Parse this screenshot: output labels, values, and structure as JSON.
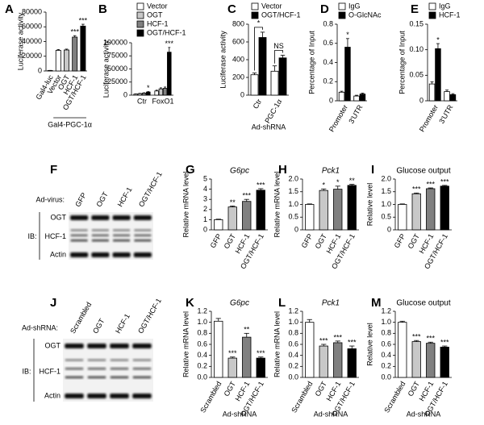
{
  "chart_data": [
    {
      "type": "bar",
      "letter": "A",
      "ylabel": "Luciferase activity",
      "categories": [
        "Gal4-luc",
        "Vector",
        "OGT",
        "HCF-1",
        "OGT/HCF-1"
      ],
      "values": [
        600,
        28000,
        28500,
        46000,
        61000
      ],
      "errors": [
        200,
        1200,
        1200,
        2000,
        2500
      ],
      "colors": [
        "#ffffff",
        "#ffffff",
        "#c8c8c8",
        "#808080",
        "#000000"
      ],
      "significance": [
        null,
        null,
        null,
        "***",
        "***"
      ],
      "group_label": "Gal4-PGC-1α",
      "ylim": [
        0,
        80000
      ],
      "yticks": [
        0,
        20000,
        40000,
        60000,
        80000
      ]
    },
    {
      "type": "bar",
      "letter": "B",
      "ylabel": "Luciferase activity",
      "categories": [
        "Ctr",
        "FoxO1"
      ],
      "series": [
        {
          "name": "Vector",
          "color": "#ffffff",
          "values": [
            2000,
            8000
          ],
          "errors": [
            400,
            1500
          ],
          "significance": [
            null,
            null
          ]
        },
        {
          "name": "OGT",
          "color": "#c8c8c8",
          "values": [
            3000,
            12000
          ],
          "errors": [
            500,
            2000
          ],
          "significance": [
            null,
            null
          ]
        },
        {
          "name": "HCF-1",
          "color": "#808080",
          "values": [
            4000,
            13000
          ],
          "errors": [
            600,
            2500
          ],
          "significance": [
            null,
            null
          ]
        },
        {
          "name": "OGT/HCF-1",
          "color": "#000000",
          "values": [
            6000,
            82000
          ],
          "errors": [
            800,
            9000
          ],
          "significance": [
            "*",
            "***"
          ]
        }
      ],
      "ylim": [
        0,
        100000
      ],
      "yticks": [
        0,
        25000,
        50000,
        75000,
        100000
      ]
    },
    {
      "type": "bar",
      "letter": "C",
      "ylabel": "Luciferase activity",
      "xlabel": "Ad-shRNA",
      "categories": [
        "Ctr",
        "PGC-1α"
      ],
      "series": [
        {
          "name": "Vector",
          "color": "#ffffff",
          "values": [
            230,
            270
          ],
          "errors": [
            20,
            60
          ]
        },
        {
          "name": "OGT/HCF-1",
          "color": "#000000",
          "values": [
            650,
            420
          ],
          "errors": [
            60,
            30
          ]
        }
      ],
      "significance": [
        "*",
        "NS"
      ],
      "ylim": [
        0,
        800
      ],
      "yticks": [
        0,
        200,
        400,
        600,
        800
      ]
    },
    {
      "type": "bar",
      "letter": "D",
      "ylabel": "Percentage of Input",
      "categories": [
        "Promoter",
        "3'UTR"
      ],
      "series": [
        {
          "name": "IgG",
          "color": "#ffffff",
          "values": [
            0.09,
            0.05
          ],
          "errors": [
            0.01,
            0.008
          ],
          "significance": [
            null,
            null
          ]
        },
        {
          "name": "O-GlcNAc",
          "color": "#000000",
          "values": [
            0.56,
            0.07
          ],
          "errors": [
            0.09,
            0.01
          ],
          "significance": [
            "*",
            null
          ]
        }
      ],
      "ylim": [
        0,
        0.8
      ],
      "yticks": [
        0,
        0.2,
        0.4,
        0.6,
        0.8
      ]
    },
    {
      "type": "bar",
      "letter": "E",
      "ylabel": "Percentage of Input",
      "categories": [
        "Promoter",
        "3'UTR"
      ],
      "series": [
        {
          "name": "IgG",
          "color": "#ffffff",
          "values": [
            0.033,
            0.018
          ],
          "errors": [
            0.004,
            0.003
          ],
          "significance": [
            null,
            null
          ]
        },
        {
          "name": "HCF-1",
          "color": "#000000",
          "values": [
            0.102,
            0.012
          ],
          "errors": [
            0.01,
            0.002
          ],
          "significance": [
            "*",
            null
          ]
        }
      ],
      "ylim": [
        0,
        0.15
      ],
      "yticks": [
        0,
        0.05,
        {
          "value": 0.1,
          "label": "0.10"
        },
        0.15
      ]
    },
    {
      "type": "bar",
      "letter": "G",
      "title": "G6pc",
      "title_italic": true,
      "ylabel": "Relative mRNA level",
      "categories": [
        "GFP",
        "OGT",
        "HCF-1",
        "OGT/HCF-1"
      ],
      "values": [
        1,
        2.25,
        2.8,
        3.9
      ],
      "errors": [
        0.05,
        0.1,
        0.2,
        0.15
      ],
      "colors": [
        "#ffffff",
        "#c8c8c8",
        "#808080",
        "#000000"
      ],
      "significance": [
        null,
        "**",
        "***",
        "***"
      ],
      "ylim": [
        0,
        5
      ],
      "yticks": [
        0,
        1,
        2,
        3,
        4,
        5
      ]
    },
    {
      "type": "bar",
      "letter": "H",
      "title": "Pck1",
      "title_italic": true,
      "ylabel": "Relative mRNA level",
      "categories": [
        "GFP",
        "OGT",
        "HCF-1",
        "OGT/HCF-1"
      ],
      "values": [
        1,
        1.55,
        1.6,
        1.75
      ],
      "errors": [
        0.02,
        0.06,
        0.12,
        0.04
      ],
      "colors": [
        "#ffffff",
        "#c8c8c8",
        "#808080",
        "#000000"
      ],
      "significance": [
        null,
        "*",
        "*",
        "**"
      ],
      "ylim": [
        0,
        2
      ],
      "yticks": [
        0,
        0.5,
        {
          "value": 1,
          "label": "1.0"
        },
        1.5,
        {
          "value": 2,
          "label": "2.0"
        }
      ]
    },
    {
      "type": "bar",
      "letter": "I",
      "title": "Glucose output",
      "title_italic": false,
      "ylabel": "Relative level",
      "categories": [
        "GFP",
        "OGT",
        "HCF-1",
        "OGT/HCF-1"
      ],
      "values": [
        1,
        1.42,
        1.62,
        1.72
      ],
      "errors": [
        0.02,
        0.03,
        0.03,
        0.03
      ],
      "colors": [
        "#ffffff",
        "#c8c8c8",
        "#808080",
        "#000000"
      ],
      "significance": [
        null,
        "***",
        "***",
        "***"
      ],
      "ylim": [
        0,
        2
      ],
      "yticks": [
        0,
        0.5,
        {
          "value": 1,
          "label": "1.0"
        },
        1.5,
        {
          "value": 2,
          "label": "2.0"
        }
      ]
    },
    {
      "type": "bar",
      "letter": "K",
      "title": "G6pc",
      "title_italic": true,
      "ylabel": "Relative mRNA level",
      "xlabel": "Ad-shRNA",
      "categories": [
        "Scrambled",
        "OGT",
        "HCF-1",
        "OGT/HCF-1"
      ],
      "values": [
        1.02,
        0.35,
        0.73,
        0.35
      ],
      "errors": [
        0.05,
        0.02,
        0.07,
        0.02
      ],
      "colors": [
        "#ffffff",
        "#c8c8c8",
        "#808080",
        "#000000"
      ],
      "significance": [
        null,
        "***",
        "**",
        "***"
      ],
      "ylim": [
        0,
        1.2
      ],
      "yticks": [
        {
          "value": 0,
          "label": "0.0"
        },
        0.2,
        0.4,
        0.6,
        0.8,
        {
          "value": 1,
          "label": "1.0"
        },
        1.2
      ]
    },
    {
      "type": "bar",
      "letter": "L",
      "title": "Pck1",
      "title_italic": true,
      "ylabel": "Relative mRNA level",
      "xlabel": "Ad-shRNA",
      "categories": [
        "Scrambled",
        "OGT",
        "HCF-1",
        "OGT/HCF-1"
      ],
      "values": [
        1.0,
        0.57,
        0.63,
        0.52
      ],
      "errors": [
        0.05,
        0.03,
        0.03,
        0.05
      ],
      "colors": [
        "#ffffff",
        "#c8c8c8",
        "#808080",
        "#000000"
      ],
      "significance": [
        null,
        "***",
        "***",
        "***"
      ],
      "ylim": [
        0,
        1.2
      ],
      "yticks": [
        {
          "value": 0,
          "label": "0.0"
        },
        0.2,
        0.4,
        0.6,
        0.8,
        {
          "value": 1,
          "label": "1.0"
        },
        1.2
      ]
    },
    {
      "type": "bar",
      "letter": "M",
      "title": "Glucose output",
      "title_italic": false,
      "ylabel": "Relative level",
      "xlabel": "Ad-shRNA",
      "categories": [
        "Scrambled",
        "OGT",
        "HCF-1",
        "OGT/HCF-1"
      ],
      "values": [
        1.0,
        0.65,
        0.62,
        0.55
      ],
      "errors": [
        0.02,
        0.02,
        0.02,
        0.02
      ],
      "colors": [
        "#ffffff",
        "#c8c8c8",
        "#808080",
        "#000000"
      ],
      "significance": [
        null,
        "***",
        "***",
        "***"
      ],
      "ylim": [
        0,
        1.2
      ],
      "yticks": [
        {
          "value": 0,
          "label": "0.0"
        },
        0.2,
        0.4,
        0.6,
        0.8,
        {
          "value": 1,
          "label": "1.0"
        },
        1.2
      ]
    }
  ],
  "blots": [
    {
      "letter": "F",
      "prefix": "Ad-virus:",
      "lanes": [
        "GFP",
        "OGT",
        "HCF-1",
        "OGT/HCF-1"
      ],
      "ib": "IB:",
      "rows": [
        "OGT",
        "HCF-1",
        "Actin"
      ]
    },
    {
      "letter": "J",
      "prefix": "Ad-shRNA:",
      "lanes": [
        "Scrambled",
        "OGT",
        "HCF-1",
        "OGT/HCF-1"
      ],
      "ib": "IB:",
      "rows": [
        "OGT",
        "HCF-1",
        "Actin"
      ]
    }
  ]
}
